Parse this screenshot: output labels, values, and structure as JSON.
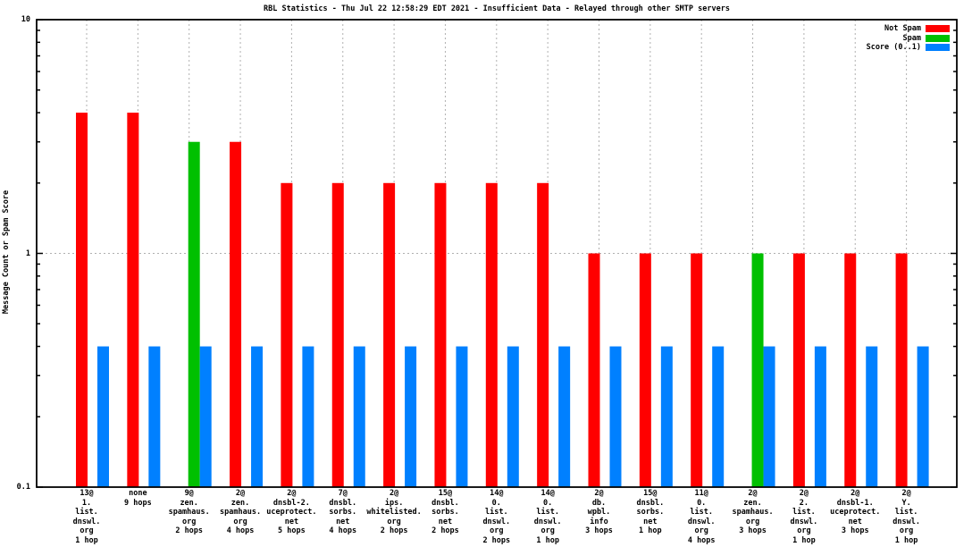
{
  "chart_data": {
    "type": "bar",
    "title": "RBL Statistics - Thu Jul 22 12:58:29 EDT 2021 - Insufficient Data - Relayed through other SMTP servers",
    "ylabel": "Message Count or Spam Score",
    "xlabel": "",
    "scale": "log",
    "ylim": [
      0.1,
      10
    ],
    "grid": "y-major dotted, x-category dotted",
    "legend_position": "top-right inside",
    "yticks": [
      {
        "label": "10",
        "value": 10
      },
      {
        "label": "1",
        "value": 1
      },
      {
        "label": "0.1",
        "value": 0.1
      }
    ],
    "legend": [
      {
        "name": "Not Spam",
        "color": "#ff0000"
      },
      {
        "name": "Spam",
        "color": "#00c000"
      },
      {
        "name": "Score (0..1)",
        "color": "#0080ff"
      }
    ],
    "categories": [
      {
        "lines": [
          "13@",
          "1.",
          "list.",
          "dnswl.",
          "org",
          "1 hop"
        ]
      },
      {
        "lines": [
          "none",
          "9 hops"
        ]
      },
      {
        "lines": [
          "9@",
          "zen.",
          "spamhaus.",
          "org",
          "2 hops"
        ]
      },
      {
        "lines": [
          "2@",
          "zen.",
          "spamhaus.",
          "org",
          "4 hops"
        ]
      },
      {
        "lines": [
          "2@",
          "dnsbl-2.",
          "uceprotect.",
          "net",
          "5 hops"
        ]
      },
      {
        "lines": [
          "7@",
          "dnsbl.",
          "sorbs.",
          "net",
          "4 hops"
        ]
      },
      {
        "lines": [
          "2@",
          "ips.",
          "whitelisted.",
          "org",
          "2 hops"
        ]
      },
      {
        "lines": [
          "15@",
          "dnsbl.",
          "sorbs.",
          "net",
          "2 hops"
        ]
      },
      {
        "lines": [
          "14@",
          "0.",
          "list.",
          "dnswl.",
          "org",
          "2 hops"
        ]
      },
      {
        "lines": [
          "14@",
          "0.",
          "list.",
          "dnswl.",
          "org",
          "1 hop"
        ]
      },
      {
        "lines": [
          "2@",
          "db.",
          "wpbl.",
          "info",
          "3 hops"
        ]
      },
      {
        "lines": [
          "15@",
          "dnsbl.",
          "sorbs.",
          "net",
          "1 hop"
        ]
      },
      {
        "lines": [
          "11@",
          "0.",
          "list.",
          "dnswl.",
          "org",
          "4 hops"
        ]
      },
      {
        "lines": [
          "2@",
          "zen.",
          "spamhaus.",
          "org",
          "3 hops"
        ]
      },
      {
        "lines": [
          "2@",
          "2.",
          "list.",
          "dnswl.",
          "org",
          "1 hop"
        ]
      },
      {
        "lines": [
          "2@",
          "dnsbl-1.",
          "uceprotect.",
          "net",
          "3 hops"
        ]
      },
      {
        "lines": [
          "2@",
          "Y.",
          "list.",
          "dnswl.",
          "org",
          "1 hop"
        ]
      }
    ],
    "series": [
      {
        "name": "Not Spam",
        "color": "#ff0000",
        "values": [
          4,
          4,
          null,
          3,
          2,
          2,
          2,
          2,
          2,
          2,
          1,
          1,
          1,
          null,
          1,
          1,
          1
        ]
      },
      {
        "name": "Spam",
        "color": "#00c000",
        "values": [
          null,
          null,
          3,
          null,
          null,
          null,
          null,
          null,
          null,
          null,
          null,
          null,
          null,
          1,
          null,
          null,
          null
        ]
      },
      {
        "name": "Score (0..1)",
        "color": "#0080ff",
        "values": [
          0.4,
          0.4,
          0.4,
          0.4,
          0.4,
          0.4,
          0.4,
          0.4,
          0.4,
          0.4,
          0.4,
          0.4,
          0.4,
          0.4,
          0.4,
          0.4,
          0.4
        ]
      }
    ],
    "colors": {
      "border": "#000000",
      "grid": "#b0b0b0",
      "background": "#ffffff"
    }
  }
}
